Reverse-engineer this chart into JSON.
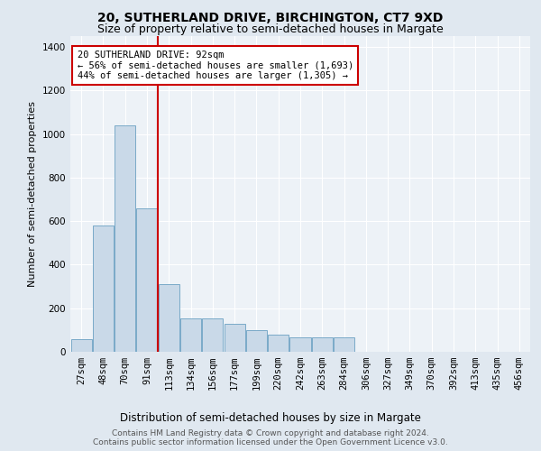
{
  "title": "20, SUTHERLAND DRIVE, BIRCHINGTON, CT7 9XD",
  "subtitle": "Size of property relative to semi-detached houses in Margate",
  "xlabel": "Distribution of semi-detached houses by size in Margate",
  "ylabel": "Number of semi-detached properties",
  "categories": [
    "27sqm",
    "48sqm",
    "70sqm",
    "91sqm",
    "113sqm",
    "134sqm",
    "156sqm",
    "177sqm",
    "199sqm",
    "220sqm",
    "242sqm",
    "263sqm",
    "284sqm",
    "306sqm",
    "327sqm",
    "349sqm",
    "370sqm",
    "392sqm",
    "413sqm",
    "435sqm",
    "456sqm"
  ],
  "values": [
    60,
    580,
    1040,
    660,
    310,
    155,
    155,
    130,
    100,
    80,
    65,
    65,
    65,
    0,
    0,
    0,
    0,
    0,
    0,
    0,
    0
  ],
  "bar_color": "#c9d9e8",
  "bar_edge_color": "#7aaac8",
  "property_line_idx": 3,
  "annotation_text_line1": "20 SUTHERLAND DRIVE: 92sqm",
  "annotation_text_line2": "← 56% of semi-detached houses are smaller (1,693)",
  "annotation_text_line3": "44% of semi-detached houses are larger (1,305) →",
  "annotation_box_color": "#ffffff",
  "annotation_box_edge_color": "#cc0000",
  "property_line_color": "#cc0000",
  "ylim": [
    0,
    1450
  ],
  "yticks": [
    0,
    200,
    400,
    600,
    800,
    1000,
    1200,
    1400
  ],
  "background_color": "#e0e8f0",
  "plot_background_color": "#edf2f7",
  "grid_color": "#ffffff",
  "footer_line1": "Contains HM Land Registry data © Crown copyright and database right 2024.",
  "footer_line2": "Contains public sector information licensed under the Open Government Licence v3.0.",
  "title_fontsize": 10,
  "subtitle_fontsize": 9,
  "xlabel_fontsize": 8.5,
  "ylabel_fontsize": 8,
  "tick_fontsize": 7.5,
  "annotation_fontsize": 7.5,
  "footer_fontsize": 6.5
}
